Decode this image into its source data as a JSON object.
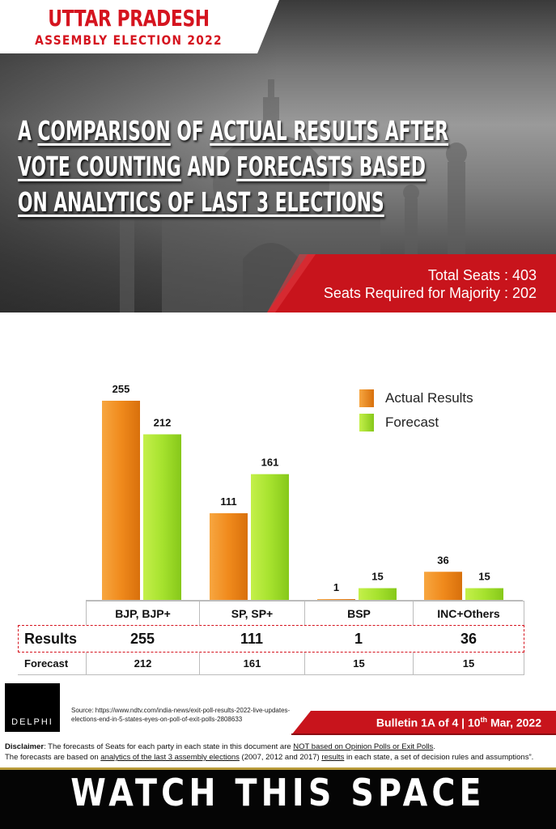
{
  "header": {
    "title_line1": "UTTAR PRADESH",
    "title_line2": "ASSEMBLY ELECTION 2022",
    "headline": [
      [
        {
          "t": "A ",
          "u": false
        },
        {
          "t": "COMPARISON",
          "u": true
        },
        {
          "t": " OF ",
          "u": false
        },
        {
          "t": "ACTUAL RESULTS AFTER",
          "u": true
        }
      ],
      [
        {
          "t": "VOTE COUNTING",
          "u": true
        },
        {
          "t": " AND ",
          "u": false
        },
        {
          "t": "FORECASTS BASED",
          "u": true
        }
      ],
      [
        {
          "t": "ON ANALYTICS OF LAST 3 ELECTIONS",
          "u": true
        }
      ]
    ],
    "total_seats": "Total Seats : 403",
    "majority": "Seats Required for Majority : 202"
  },
  "colors": {
    "brand_red": "#d5141f",
    "actual_bar": "#f08a1c",
    "forecast_bar": "#a6e22e"
  },
  "chart_data": {
    "type": "bar",
    "categories": [
      "BJP, BJP+",
      "SP, SP+",
      "BSP",
      "INC+Others"
    ],
    "series": [
      {
        "name": "Actual Results",
        "values": [
          255,
          111,
          1,
          36
        ]
      },
      {
        "name": "Forecast",
        "values": [
          212,
          161,
          15,
          15
        ]
      }
    ],
    "ylim": [
      0,
      255
    ],
    "grid": false,
    "legend_position": "top-right"
  },
  "table": {
    "results_label": "Results",
    "forecast_label": "Forecast"
  },
  "footer": {
    "logo_text": "DELPHI",
    "source": "Source: https://www.ndtv.com/india-news/exit-poll-results-2022-live-updates-elections-end-in-5-states-eyes-on-poll-of-exit-polls-2808633",
    "bulletin_main": "Bulletin 1A of 4 | 10",
    "bulletin_sup": "th",
    "bulletin_tail": " Mar, 2022",
    "disclaimer_label": "Disclaimer",
    "disclaimer_1a": ": The forecasts of Seats for each party in each state in this document are ",
    "disclaimer_1b": "NOT based on Opinion Polls or Exit Polls",
    "disclaimer_1c": ".",
    "disclaimer_2a": "The forecasts are based on ",
    "disclaimer_2b": "analytics of the last 3 assembly elections",
    "disclaimer_2c": " (2007, 2012 and 2017) ",
    "disclaimer_2d": "results",
    "disclaimer_2e": " in each state, a set of decision rules and assumptions”.",
    "watch": "WATCH THIS SPACE"
  }
}
